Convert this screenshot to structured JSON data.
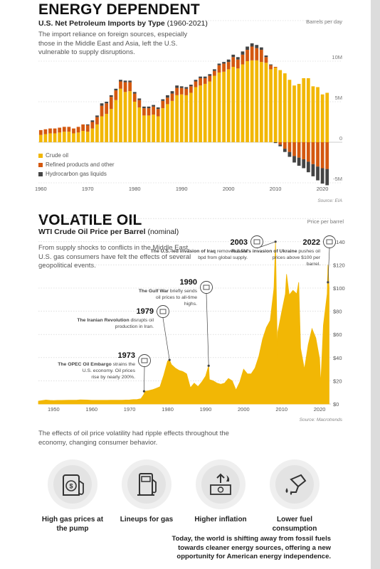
{
  "section1": {
    "title": "ENERGY DEPENDENT",
    "subtitle_bold": "U.S. Net Petroleum Imports by Type",
    "subtitle_years": " (1960-2021)",
    "intro": "The import reliance on foreign sources, especially those in the Middle East and Asia, left the U.S. vulnerable to supply disruptions.",
    "source": "Source: EIA"
  },
  "section2": {
    "title": "VOLATILE OIL",
    "subtitle_bold": "WTI Crude Oil Price per Barrel",
    "subtitle_nominal": " (nominal)",
    "intro": "From supply shocks to conflicts in the Middle East, U.S. gas consumers have felt the effects of several geopolitical events.",
    "source": "Source: Macrotrends"
  },
  "effects_text": "The effects of oil price volatility had ripple effects throughout the economy, changing consumer behavior.",
  "impacts": [
    {
      "label": "High gas prices at the pump",
      "icon": "gas-pump-icon"
    },
    {
      "label": "Lineups for gas",
      "icon": "fuel-station-icon"
    },
    {
      "label": "Higher inflation",
      "icon": "inflation-money-icon"
    },
    {
      "label": "Lower fuel consumption",
      "icon": "fuel-nozzle-icon"
    }
  ],
  "closing": "Today, the world is shifting away from fossil fuels towards cleaner energy sources, offering a new opportunity for American energy independence.",
  "colors": {
    "crude": "#f2b705",
    "refined": "#d4580f",
    "hgl": "#444444",
    "price": "#f2b705"
  },
  "chart_data": [
    {
      "type": "bar",
      "title": "U.S. Net Petroleum Imports by Type (1960-2021)",
      "unit_label": "Barrels per day",
      "y_ticks": [
        "15M",
        "10M",
        "5M",
        "0",
        "-5M"
      ],
      "y_tick_values": [
        15,
        10,
        5,
        0,
        -5
      ],
      "ylim": [
        -5,
        15
      ],
      "x_ticks": [
        "1960",
        "1970",
        "1980",
        "1990",
        "2000",
        "2010",
        "2020"
      ],
      "x_tick_values": [
        1960,
        1970,
        1980,
        1990,
        2000,
        2010,
        2020
      ],
      "years": [
        1960,
        1961,
        1962,
        1963,
        1964,
        1965,
        1966,
        1967,
        1968,
        1969,
        1970,
        1971,
        1972,
        1973,
        1974,
        1975,
        1976,
        1977,
        1978,
        1979,
        1980,
        1981,
        1982,
        1983,
        1984,
        1985,
        1986,
        1987,
        1988,
        1989,
        1990,
        1991,
        1992,
        1993,
        1994,
        1995,
        1996,
        1997,
        1998,
        1999,
        2000,
        2001,
        2002,
        2003,
        2004,
        2005,
        2006,
        2007,
        2008,
        2009,
        2010,
        2011,
        2012,
        2013,
        2014,
        2015,
        2016,
        2017,
        2018,
        2019,
        2020,
        2021
      ],
      "series": [
        {
          "name": "Crude oil",
          "values": [
            0.9,
            1.0,
            1.1,
            1.1,
            1.2,
            1.3,
            1.3,
            1.1,
            1.2,
            1.4,
            1.3,
            1.7,
            2.2,
            3.2,
            3.5,
            4.1,
            5.2,
            6.6,
            6.2,
            6.3,
            5.0,
            4.3,
            3.3,
            3.3,
            3.4,
            3.2,
            4.2,
            4.7,
            5.1,
            5.8,
            5.9,
            5.8,
            6.1,
            6.8,
            7.0,
            7.2,
            7.5,
            8.2,
            8.6,
            8.7,
            9.0,
            9.3,
            9.1,
            9.6,
            10.0,
            10.1,
            10.1,
            9.9,
            9.8,
            9.0,
            9.2,
            8.9,
            8.5,
            7.7,
            7.0,
            7.2,
            7.9,
            7.9,
            6.9,
            6.8,
            5.9,
            6.1
          ]
        },
        {
          "name": "Refined products and other",
          "values": [
            0.6,
            0.6,
            0.6,
            0.6,
            0.6,
            0.6,
            0.6,
            0.6,
            0.7,
            0.8,
            0.8,
            0.8,
            0.9,
            1.3,
            1.3,
            1.5,
            1.2,
            0.9,
            1.2,
            1.1,
            1.0,
            0.9,
            0.9,
            0.9,
            1.0,
            0.9,
            0.9,
            0.8,
            0.9,
            0.9,
            0.8,
            0.8,
            0.8,
            0.7,
            0.9,
            0.7,
            0.7,
            0.6,
            0.9,
            1.0,
            0.9,
            1.2,
            1.1,
            1.2,
            1.4,
            1.7,
            1.5,
            1.5,
            0.7,
            0.5,
            0.1,
            -0.3,
            -0.8,
            -1.2,
            -1.7,
            -1.9,
            -2.1,
            -2.4,
            -2.7,
            -3.0,
            -3.2,
            -3.3
          ]
        },
        {
          "name": "Hydrocarbon gas liquids",
          "values": [
            0,
            0,
            0,
            0,
            0,
            0,
            0,
            0,
            0,
            0,
            0.1,
            0.2,
            0.2,
            0.3,
            0.2,
            0.2,
            0.2,
            0.2,
            0.2,
            0.2,
            0.2,
            0.2,
            0.2,
            0.2,
            0.2,
            0.2,
            0.2,
            0.3,
            0.3,
            0.3,
            0.2,
            0.2,
            0.2,
            0.2,
            0.2,
            0.2,
            0.2,
            0.2,
            0.2,
            0.2,
            0.3,
            0.3,
            0.3,
            0.4,
            0.4,
            0.4,
            0.4,
            0.3,
            0.2,
            0.1,
            -0.1,
            -0.2,
            -0.4,
            -0.6,
            -0.8,
            -1.0,
            -1.1,
            -1.3,
            -1.5,
            -1.7,
            -1.9,
            -2.0
          ]
        }
      ]
    },
    {
      "type": "area",
      "title": "WTI Crude Oil Price per Barrel (nominal)",
      "unit_label": "Price per barrel",
      "y_ticks": [
        "$160",
        "$140",
        "$120",
        "$100",
        "$80",
        "$60",
        "$40",
        "$20",
        "$0"
      ],
      "y_tick_values": [
        160,
        140,
        120,
        100,
        80,
        60,
        40,
        20,
        0
      ],
      "ylim": [
        0,
        160
      ],
      "x_ticks": [
        "1950",
        "1960",
        "1970",
        "1980",
        "1990",
        "2000",
        "2010",
        "2020"
      ],
      "x_tick_values": [
        1950,
        1960,
        1970,
        1980,
        1990,
        2000,
        2010,
        2020
      ],
      "xlim": [
        1946,
        2022.6
      ],
      "x": [
        1946,
        1947,
        1948,
        1949,
        1950,
        1951,
        1952,
        1953,
        1954,
        1955,
        1956,
        1957,
        1958,
        1959,
        1960,
        1961,
        1962,
        1963,
        1964,
        1965,
        1966,
        1967,
        1968,
        1969,
        1970,
        1971,
        1972,
        1973,
        1973.8,
        1974,
        1975,
        1976,
        1977,
        1978,
        1979,
        1980,
        1980.5,
        1981,
        1982,
        1983,
        1984,
        1985,
        1986,
        1987,
        1988,
        1989,
        1990,
        1990.8,
        1991,
        1992,
        1993,
        1994,
        1995,
        1996,
        1997,
        1998,
        1999,
        2000,
        2001,
        2002,
        2003,
        2004,
        2005,
        2006,
        2007,
        2008,
        2008.4,
        2008.9,
        2009,
        2010,
        2011,
        2011.3,
        2012,
        2013,
        2014,
        2014.5,
        2015,
        2016,
        2017,
        2018,
        2019,
        2020,
        2020.3,
        2021,
        2022,
        2022.2,
        2022.5
      ],
      "y": [
        2.5,
        3.0,
        3.4,
        3.1,
        3.0,
        3.1,
        3.1,
        3.2,
        3.3,
        3.3,
        3.3,
        3.6,
        3.5,
        3.4,
        3.2,
        3.2,
        3.2,
        3.2,
        3.2,
        3.3,
        3.3,
        3.3,
        3.3,
        3.4,
        3.5,
        3.8,
        3.9,
        4.6,
        8.5,
        11,
        11.5,
        12.3,
        13.5,
        14.9,
        25,
        37,
        38,
        34,
        31,
        29,
        28,
        26,
        14,
        18,
        15,
        19,
        24,
        33,
        21,
        20,
        18,
        17,
        18,
        22,
        20,
        12,
        19,
        30,
        26,
        26,
        31,
        41,
        56,
        66,
        72,
        100,
        140,
        40,
        62,
        79,
        95,
        112,
        94,
        98,
        95,
        105,
        48,
        30,
        51,
        65,
        57,
        39,
        17,
        68,
        95,
        120,
        100
      ]
    }
  ],
  "annotations": [
    {
      "year": "1973",
      "text_bold": "The OPEC Oil Embargo",
      "text": "strains the U.S. economy. Oil prices rise by nearly 200%.",
      "icon": "embargo-icon"
    },
    {
      "year": "1979",
      "text_bold": "The Iranian Revolution",
      "text": "disrupts oil production in Iran.",
      "icon": "oil-barrel-icon"
    },
    {
      "year": "1990",
      "text_bold": "The Gulf War",
      "text": "briefly sends oil prices to all-time highs.",
      "icon": "oil-can-icon"
    },
    {
      "year": "2003",
      "text_bold": "The U.S.-led invasion of Iraq",
      "text": "removes 2.5M bpd from global supply.",
      "icon": "tank-icon"
    },
    {
      "year": "2022",
      "text_bold": "Russia's invasion of Ukraine",
      "text": "pushes oil prices above $100 per barrel.",
      "icon": "tank-icon"
    }
  ]
}
